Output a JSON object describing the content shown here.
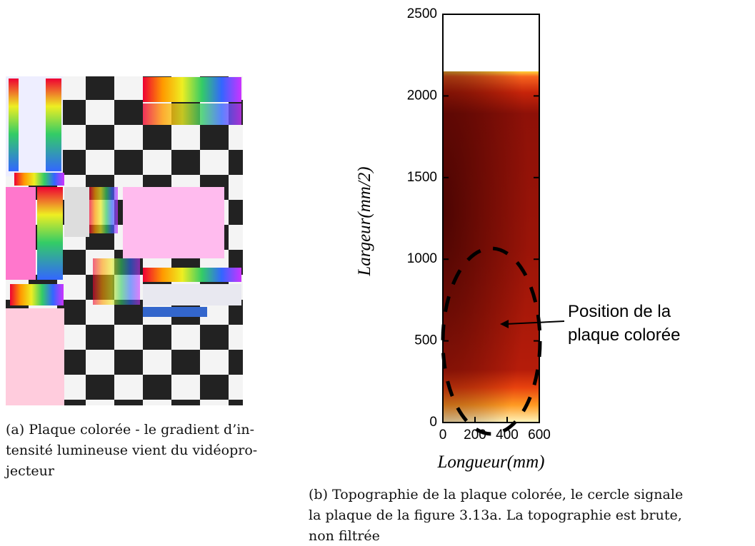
{
  "caption_a": [
    "(a) Plaque colorée - le gradient d’in-",
    "tensité lumineuse vient du vidéopro-",
    "jecteur"
  ],
  "chart_data": {
    "type": "heatmap",
    "xlabel": "Longueur(mm)",
    "ylabel": "Largeur(mm/2)",
    "xlim": [
      0,
      600
    ],
    "ylim": [
      0,
      2500
    ],
    "xticks": [
      0,
      200,
      400,
      600
    ],
    "yticks": [
      0,
      500,
      1000,
      1500,
      2000,
      2500
    ],
    "annotation": [
      "Position de la",
      "plaque colorée"
    ]
  },
  "caption_b": [
    "(b) Topographie de la plaque colorée, le cercle signale",
    "la plaque de la figure 3.13a. La topographie est brute,",
    "non filtrée"
  ]
}
